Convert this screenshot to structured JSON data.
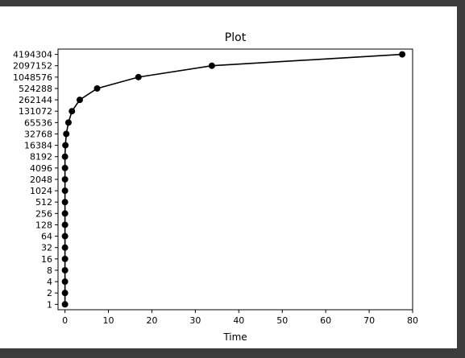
{
  "chart_data": {
    "type": "line",
    "title": "Plot",
    "xlabel": "Time",
    "ylabel": "",
    "yscale": "log2",
    "grid": false,
    "xlim": [
      -1.6,
      80.0
    ],
    "ylim": [
      0.72,
      5800000
    ],
    "xticks": [
      0,
      10,
      20,
      30,
      40,
      50,
      60,
      70,
      80
    ],
    "yticks": [
      1,
      2,
      4,
      8,
      16,
      32,
      64,
      128,
      256,
      512,
      1024,
      2048,
      4096,
      8192,
      16384,
      32768,
      65536,
      131072,
      262144,
      524288,
      1048576,
      2097152,
      4194304
    ],
    "line_color": "#000000",
    "marker": "circle",
    "series": [
      {
        "x": [
          0,
          0,
          0,
          0,
          0,
          0,
          0,
          0,
          0,
          0,
          0,
          0,
          0,
          0,
          0.1,
          0.3,
          0.8,
          1.6,
          3.4,
          7.4,
          16.9,
          33.8,
          77.6
        ],
        "y": [
          1,
          2,
          4,
          8,
          16,
          32,
          64,
          128,
          256,
          512,
          1024,
          2048,
          4096,
          8192,
          16384,
          32768,
          65536,
          131072,
          262144,
          524288,
          1048576,
          2097152,
          4194304
        ]
      }
    ]
  }
}
